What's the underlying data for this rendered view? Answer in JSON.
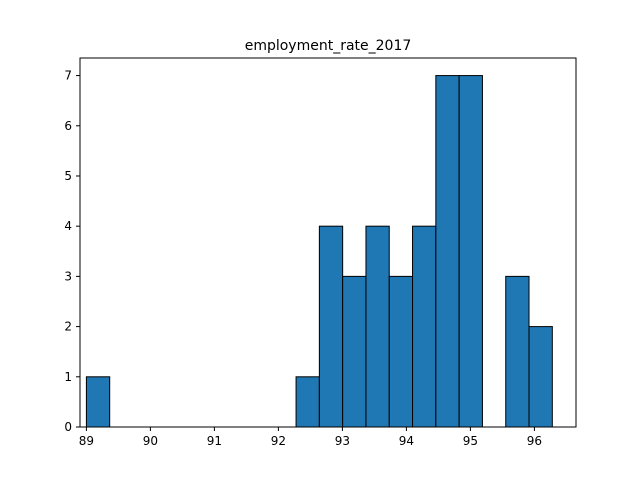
{
  "chart_data": {
    "type": "bar",
    "title": "employment_rate_2017",
    "xlabel": "",
    "ylabel": "",
    "xlim": [
      88.9,
      96.65
    ],
    "ylim": [
      0,
      7.35
    ],
    "xticks": [
      89,
      90,
      91,
      92,
      93,
      94,
      95,
      96
    ],
    "yticks": [
      0,
      1,
      2,
      3,
      4,
      5,
      6,
      7
    ],
    "bins": [
      {
        "x0": 89.0,
        "x1": 89.364,
        "count": 1
      },
      {
        "x0": 89.364,
        "x1": 89.728,
        "count": 0
      },
      {
        "x0": 89.728,
        "x1": 90.092,
        "count": 0
      },
      {
        "x0": 90.092,
        "x1": 90.456,
        "count": 0
      },
      {
        "x0": 90.456,
        "x1": 90.82,
        "count": 0
      },
      {
        "x0": 90.82,
        "x1": 91.184,
        "count": 0
      },
      {
        "x0": 91.184,
        "x1": 91.548,
        "count": 0
      },
      {
        "x0": 91.548,
        "x1": 91.912,
        "count": 0
      },
      {
        "x0": 91.912,
        "x1": 92.276,
        "count": 0
      },
      {
        "x0": 92.276,
        "x1": 92.64,
        "count": 1
      },
      {
        "x0": 92.64,
        "x1": 93.004,
        "count": 4
      },
      {
        "x0": 93.004,
        "x1": 93.368,
        "count": 3
      },
      {
        "x0": 93.368,
        "x1": 93.732,
        "count": 4
      },
      {
        "x0": 93.732,
        "x1": 94.096,
        "count": 3
      },
      {
        "x0": 94.096,
        "x1": 94.46,
        "count": 4
      },
      {
        "x0": 94.46,
        "x1": 94.824,
        "count": 7
      },
      {
        "x0": 94.824,
        "x1": 95.188,
        "count": 7
      },
      {
        "x0": 95.188,
        "x1": 95.552,
        "count": 0
      },
      {
        "x0": 95.552,
        "x1": 95.916,
        "count": 3
      },
      {
        "x0": 95.916,
        "x1": 96.28,
        "count": 2
      }
    ],
    "colors": {
      "bar_fill": "#1f77b4",
      "bar_edge": "#000000",
      "axis": "#000000"
    },
    "grid": false,
    "legend": "none"
  }
}
